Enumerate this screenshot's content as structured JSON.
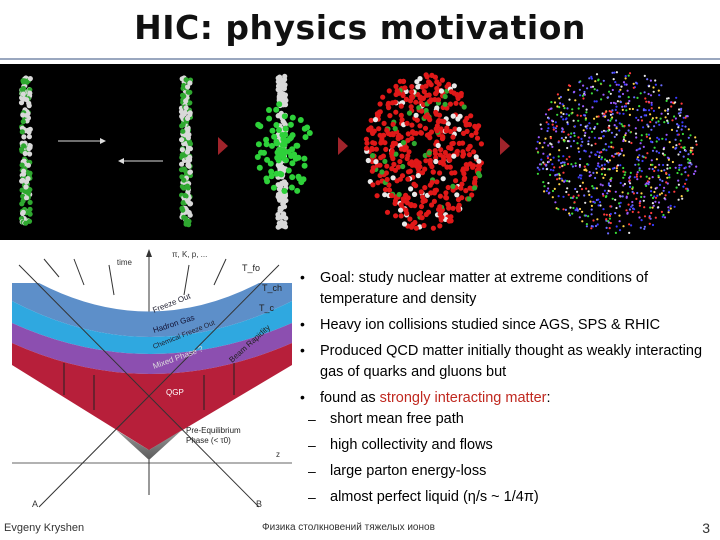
{
  "slide": {
    "title": "HIC: physics motivation",
    "bullets": [
      {
        "text_before": "Goal: study nuclear matter at extreme conditions of temperature and density",
        "highlight": "",
        "text_after": ""
      },
      {
        "text_before": "Heavy ion collisions studied since AGS, SPS & RHIC",
        "highlight": "",
        "text_after": ""
      },
      {
        "text_before": "Produced QCD matter initially thought as weakly interacting gas of quarks and gluons but",
        "highlight": "",
        "text_after": ""
      },
      {
        "text_before": "found as ",
        "highlight": "strongly interacting matter",
        "text_after": ":"
      }
    ],
    "sub_bullets": [
      "short mean free path",
      "high collectivity and flows",
      "large parton energy-loss",
      "almost perfect liquid (η/s  ~ 1/4π)"
    ],
    "bullet_symbol": "•",
    "sub_bullet_symbol": "–",
    "highlight_color": "#c0281f"
  },
  "diagram": {
    "time_label": "time",
    "particles_label": "π, K, p, ...",
    "t_fo": "T_fo",
    "t_ch": "T_ch",
    "t_c": "T_c",
    "freeze_out": "Freeze Out",
    "hadron_gas": "Hadron Gas",
    "chemical_freeze_out": "Chemical Freeze Out",
    "mixed_phase": "Mixed Phase ?",
    "beam_rapidity": "Beam Rapidity",
    "qgp": "QGP",
    "pre_equilibrium_1": "Pre-Equilibrium",
    "pre_equilibrium_2": "Phase (< τ0)",
    "z_label": "z",
    "a_label": "A",
    "b_label": "B"
  },
  "footer": {
    "author": "Evgeny Kryshen",
    "course": "Физика столкновений тяжелых ионов",
    "page": "3"
  }
}
